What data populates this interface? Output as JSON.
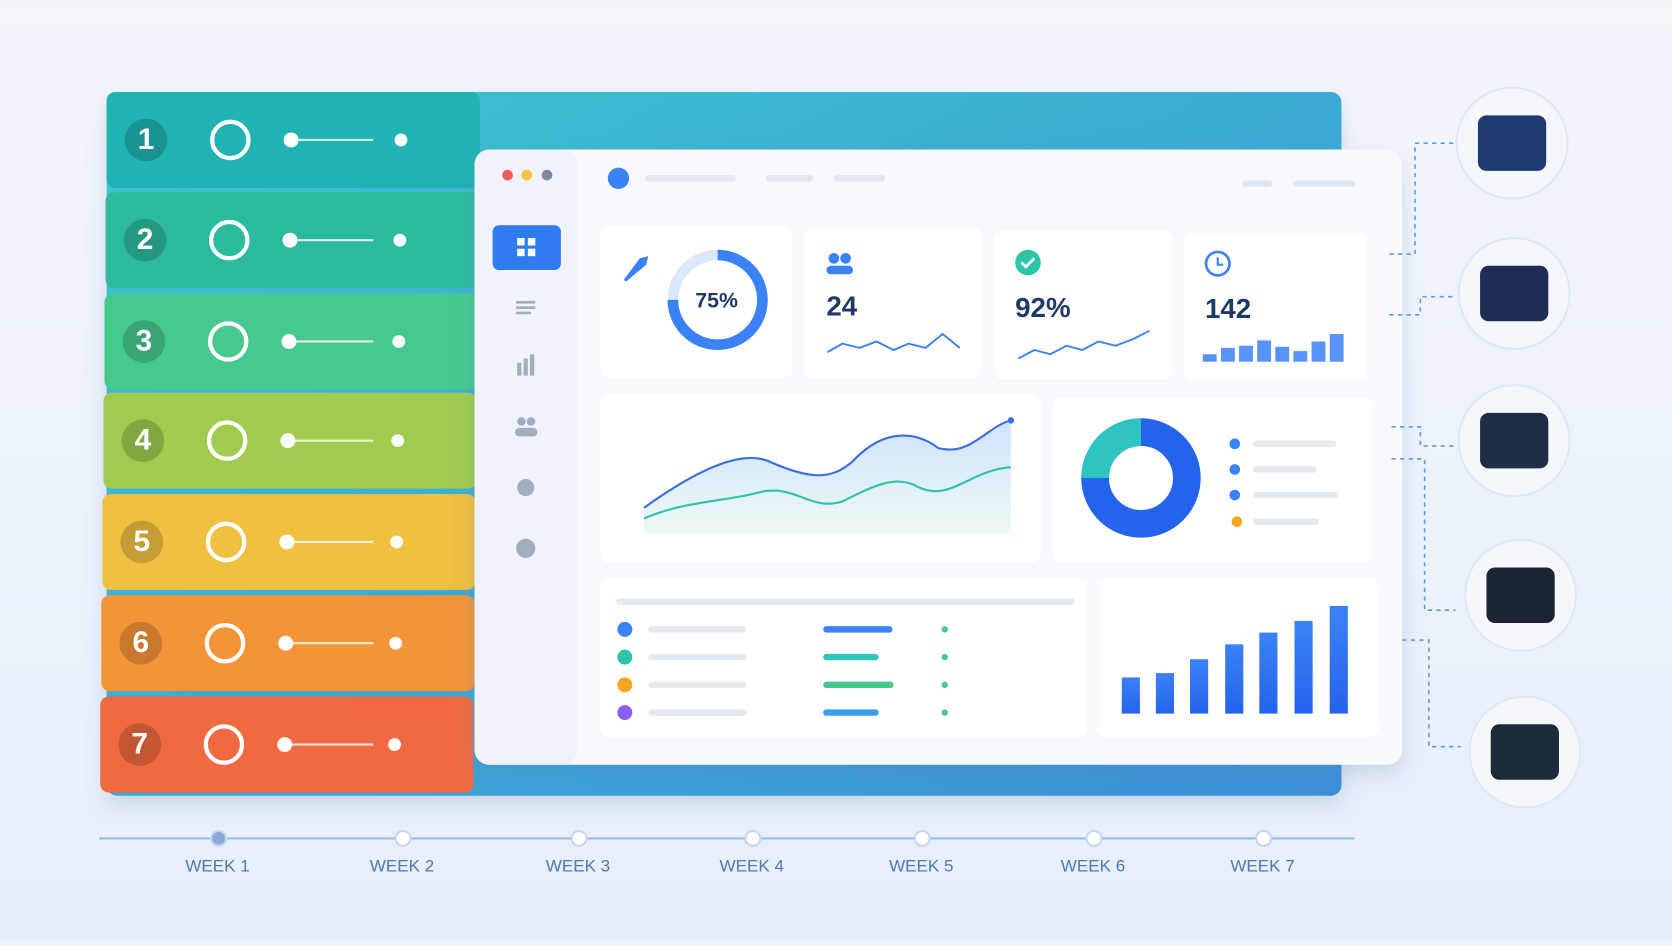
{
  "steps": [
    "1",
    "2",
    "3",
    "4",
    "5",
    "6",
    "7"
  ],
  "weeks": [
    "WEEK 1",
    "WEEK 2",
    "WEEK 3",
    "WEEK 4",
    "WEEK 5",
    "WEEK 6",
    "WEEK 7"
  ],
  "stats": [
    "75%",
    "24",
    "92%",
    "142"
  ]
}
